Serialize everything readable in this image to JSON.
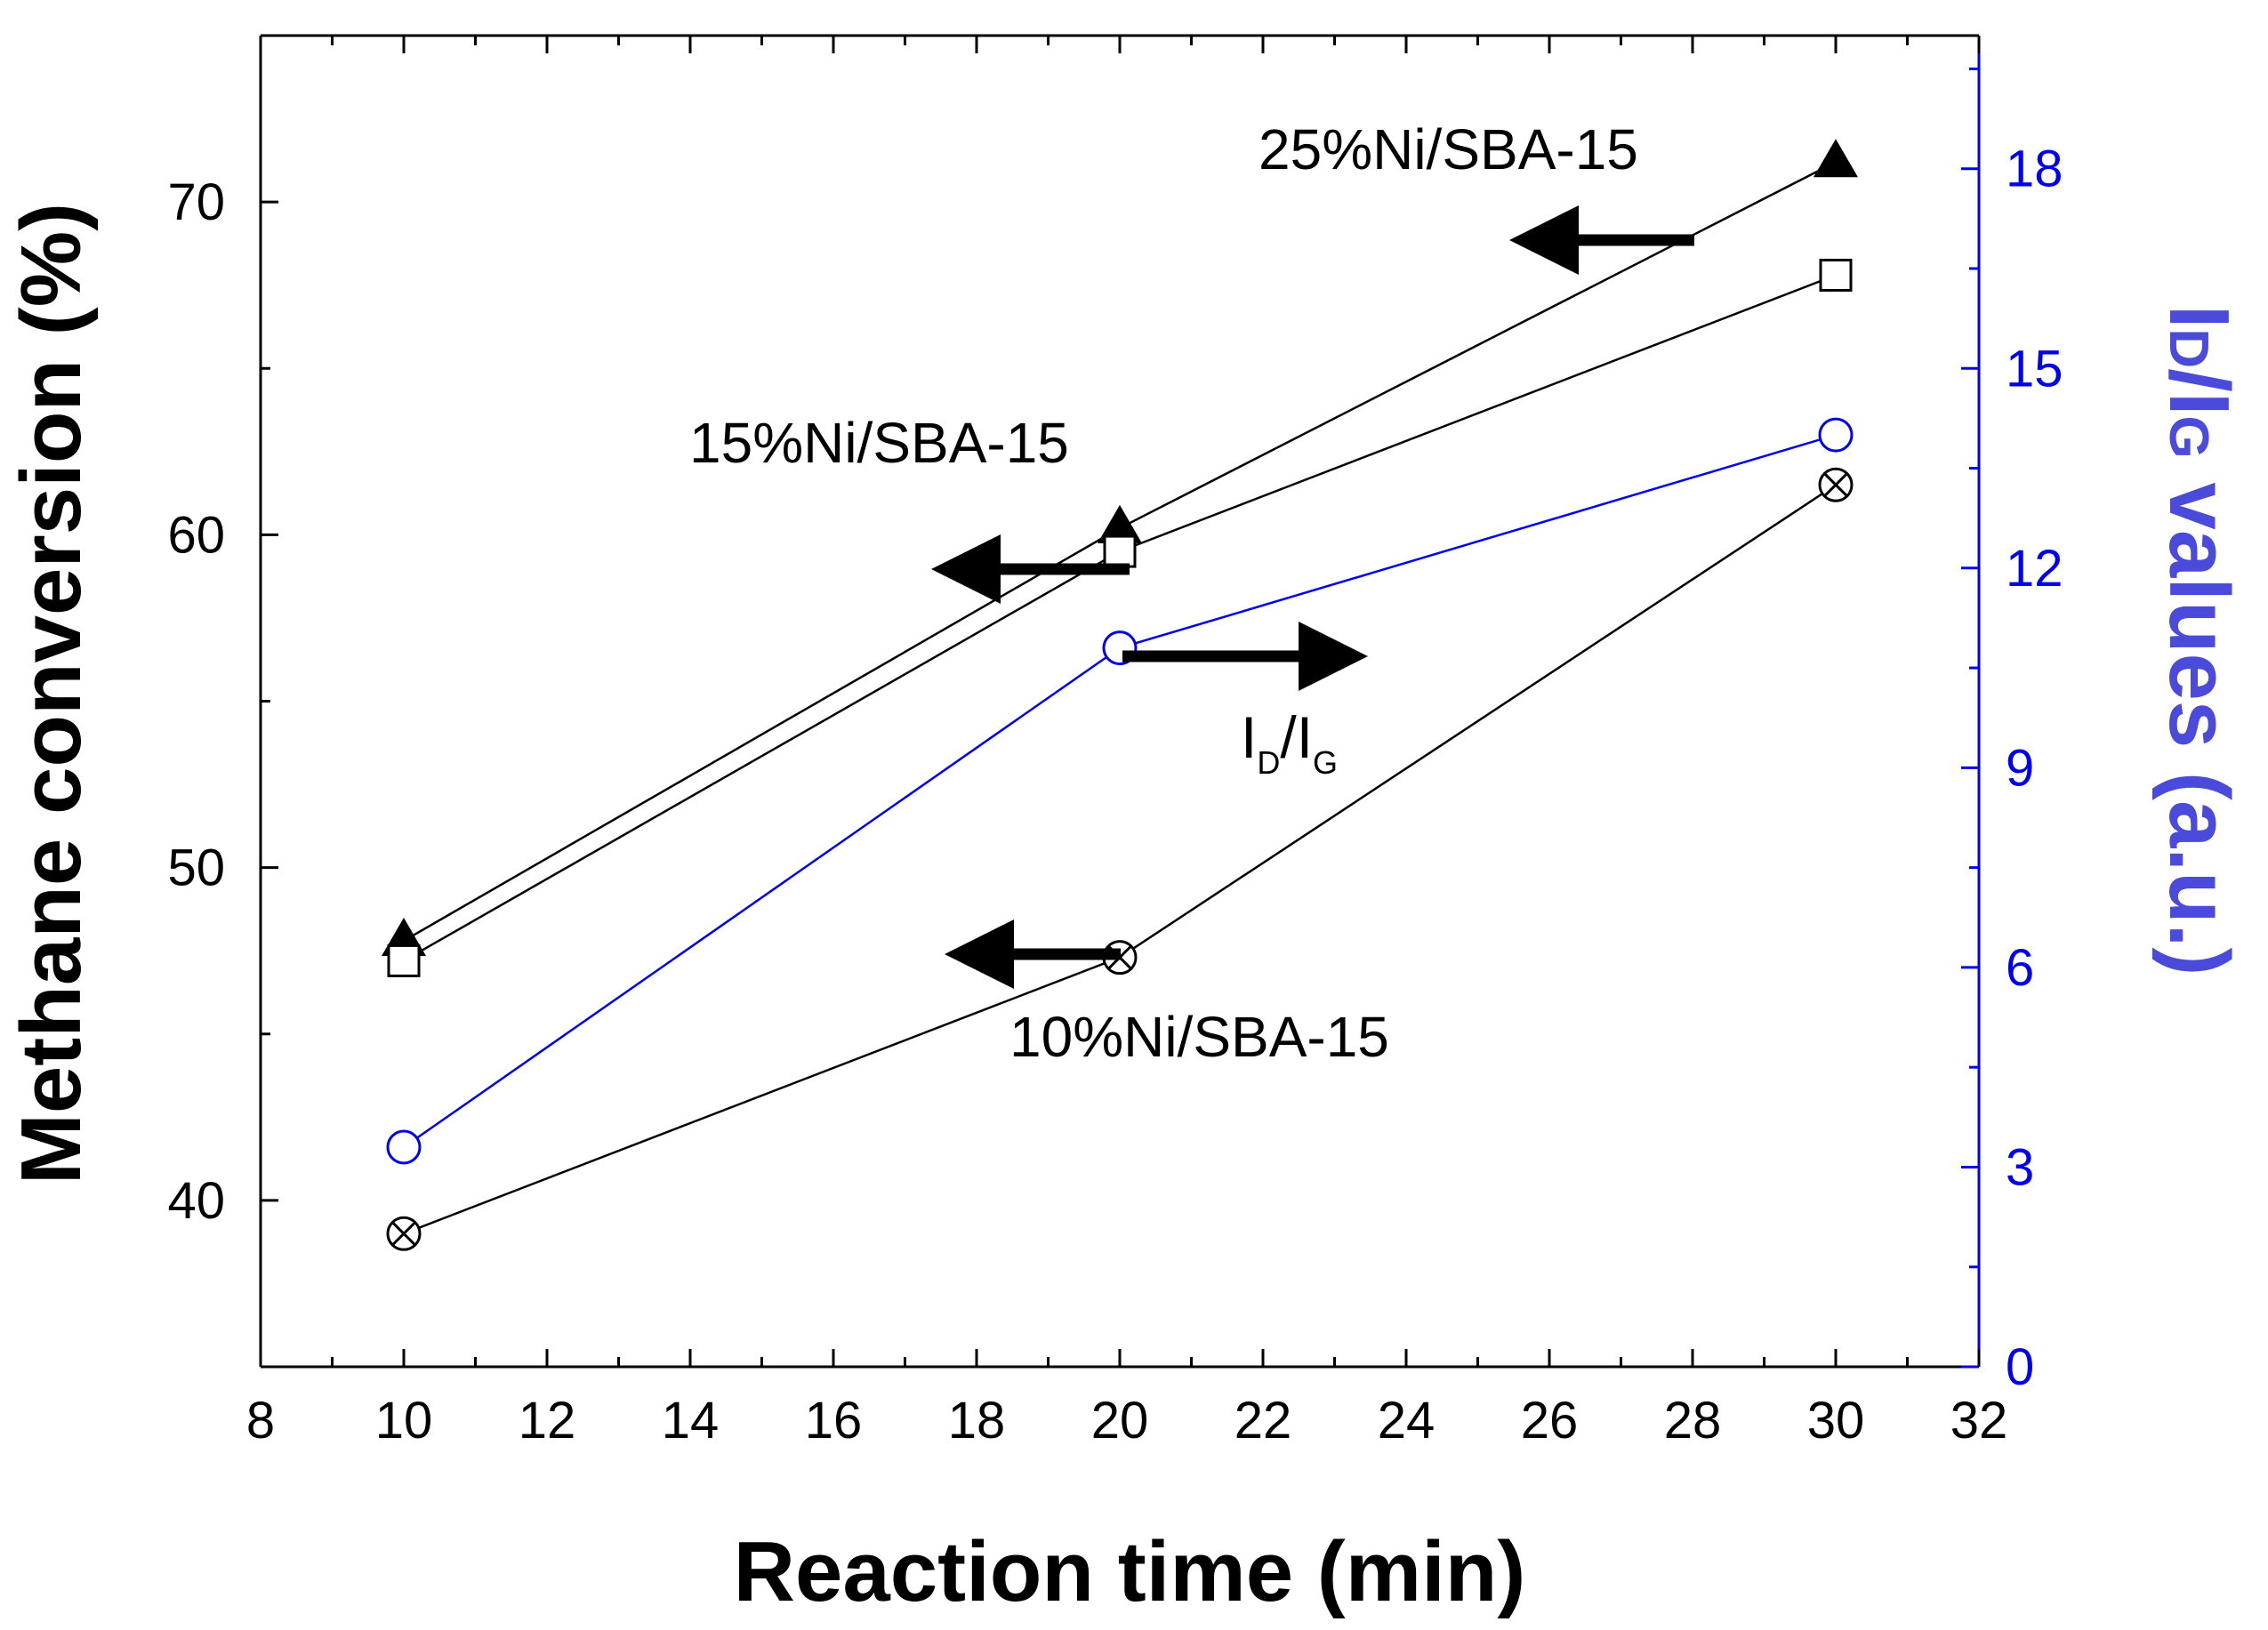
{
  "chart_data": {
    "type": "line",
    "xlabel": "Reaction time (min)",
    "ylabel": "Methane conversion (%)",
    "y2label_parts": {
      "i1": "I",
      "s1": "D",
      "slash": "/",
      "i2": "I",
      "s2": "G",
      "rest": " values (a.u.)"
    },
    "xlim": [
      8,
      32
    ],
    "ylim": [
      35,
      75
    ],
    "y2lim": [
      0,
      20
    ],
    "x_ticks": [
      8,
      10,
      12,
      14,
      16,
      18,
      20,
      22,
      24,
      26,
      28,
      30,
      32
    ],
    "y_ticks": [
      40,
      50,
      60,
      70
    ],
    "y2_ticks": [
      0,
      3,
      6,
      9,
      12,
      15,
      18
    ],
    "series": [
      {
        "name": "25%Ni/SBA-15",
        "axis": "left",
        "marker": "filled-triangle",
        "color": "#000000",
        "x": [
          10,
          20,
          30
        ],
        "values": [
          47.8,
          60.2,
          71.2
        ]
      },
      {
        "name": "15%Ni/SBA-15",
        "axis": "left",
        "marker": "open-square",
        "color": "#000000",
        "x": [
          10,
          20,
          30
        ],
        "values": [
          47.2,
          59.5,
          67.8
        ]
      },
      {
        "name": "10%Ni/SBA-15",
        "axis": "left",
        "marker": "crossed-circle",
        "color": "#000000",
        "x": [
          10,
          20,
          30
        ],
        "values": [
          39.0,
          47.3,
          61.5
        ]
      },
      {
        "name": "ID/IG",
        "axis": "right",
        "marker": "open-circle",
        "color": "#0000ee",
        "x": [
          10,
          20,
          30
        ],
        "values": [
          3.3,
          10.8,
          14.0
        ]
      }
    ],
    "annotations": {
      "label_25": "25%Ni/SBA-15",
      "label_15": "15%Ni/SBA-15",
      "label_10": "10%Ni/SBA-15",
      "idig": {
        "i1": "I",
        "s1": "D",
        "slash": "/",
        "i2": "I",
        "s2": "G"
      }
    },
    "colors": {
      "axis": "#000000",
      "right_axis": "#0000ee",
      "right_title": "#4a4adb"
    }
  }
}
